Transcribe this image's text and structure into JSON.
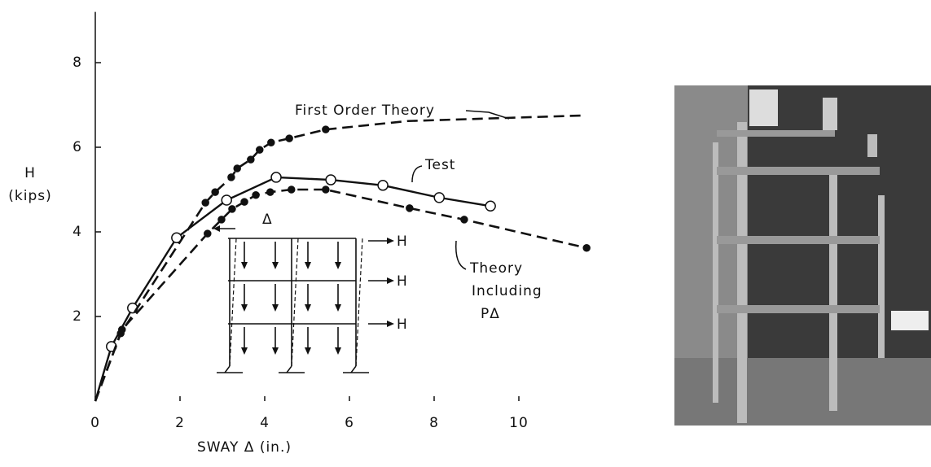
{
  "chart_data": {
    "type": "line",
    "x_label": "SWAY Δ (in.)",
    "y_label": [
      "H",
      "(kips)"
    ],
    "xlim": [
      0,
      12
    ],
    "ylim": [
      0,
      9.2
    ],
    "xticks": [
      0,
      2,
      4,
      6,
      8,
      10
    ],
    "yticks": [
      2,
      4,
      6,
      8
    ],
    "series": [
      {
        "name": "Test",
        "color": "#111111",
        "dashed": false,
        "marker": "open",
        "x": [
          0,
          0.38,
          0.88,
          1.92,
          3.1,
          4.27,
          5.56,
          6.79,
          8.12,
          9.33
        ],
        "values": [
          0,
          1.29,
          2.2,
          3.86,
          4.75,
          5.29,
          5.23,
          5.1,
          4.81,
          4.61
        ],
        "markers_from": 1
      },
      {
        "name": "First Order Theory",
        "color": "#111111",
        "dashed": true,
        "marker": "filled",
        "x": [
          0,
          0.6,
          2.6,
          2.83,
          3.21,
          3.35,
          3.67,
          3.88,
          4.15,
          4.58,
          5.44,
          7.38,
          11.5
        ],
        "values": [
          0,
          1.6,
          4.69,
          4.94,
          5.29,
          5.5,
          5.71,
          5.94,
          6.11,
          6.21,
          6.42,
          6.62,
          6.75
        ],
        "markers_from": 1,
        "markers_to": 11
      },
      {
        "name": [
          "Theory",
          "Including",
          "PΔ"
        ],
        "color": "#111111",
        "dashed": true,
        "marker": "filled",
        "x": [
          0,
          0.63,
          2.65,
          2.98,
          3.23,
          3.52,
          3.79,
          4.13,
          4.63,
          5.44,
          7.42,
          8.71,
          11.6
        ],
        "values": [
          0,
          1.69,
          3.96,
          4.29,
          4.54,
          4.71,
          4.87,
          4.94,
          5.0,
          5.0,
          4.56,
          4.29,
          3.62
        ],
        "markers_from": 1
      }
    ],
    "inset": {
      "delta": "Δ",
      "loads": [
        "H",
        "H",
        "H"
      ]
    }
  }
}
